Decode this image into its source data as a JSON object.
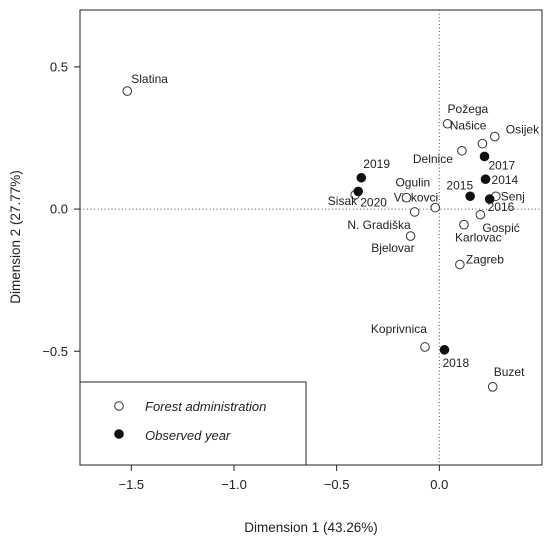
{
  "chart_data": {
    "type": "scatter",
    "xlabel": "Dimension 1 (43.26%)",
    "ylabel": "Dimension 2 (27.77%)",
    "xlim": [
      -1.75,
      0.5
    ],
    "ylim": [
      -0.9,
      0.7
    ],
    "x_ticks": [
      "-1.5",
      "-1.0",
      "-0.5",
      "0.0"
    ],
    "x_tick_values": [
      -1.5,
      -1.0,
      -0.5,
      0.0
    ],
    "y_ticks": [
      "0.5",
      "0.0",
      "-0.5"
    ],
    "y_tick_values": [
      0.5,
      0.0,
      -0.5
    ],
    "reference_lines": {
      "x": 0,
      "y": 0,
      "style": "dotted"
    },
    "legend": {
      "placement": "bottom-left",
      "entries": [
        {
          "label": "Forest administration",
          "marker": "open-circle"
        },
        {
          "label": "Observed year",
          "marker": "filled-circle"
        }
      ]
    },
    "series": [
      {
        "name": "Forest administration",
        "marker": "open-circle",
        "points": [
          {
            "label": "Slatina",
            "x": -1.52,
            "y": 0.415
          },
          {
            "label": "Požega",
            "x": 0.04,
            "y": 0.3
          },
          {
            "label": "Osijek",
            "x": 0.27,
            "y": 0.255
          },
          {
            "label": "Našice",
            "x": 0.21,
            "y": 0.23
          },
          {
            "label": "Delnice",
            "x": 0.11,
            "y": 0.205
          },
          {
            "label": "Senj",
            "x": 0.275,
            "y": 0.045
          },
          {
            "label": "Vinkovci",
            "x": -0.02,
            "y": 0.005
          },
          {
            "label": "Ogulin",
            "x": -0.16,
            "y": 0.04
          },
          {
            "label": "Sisak",
            "x": -0.41,
            "y": 0.05
          },
          {
            "label": "N. Gradiška",
            "x": -0.12,
            "y": -0.01
          },
          {
            "label": "Gospić",
            "x": 0.2,
            "y": -0.02
          },
          {
            "label": "Karlovac",
            "x": 0.12,
            "y": -0.055
          },
          {
            "label": "Bjelovar",
            "x": -0.14,
            "y": -0.095
          },
          {
            "label": "Zagreb",
            "x": 0.1,
            "y": -0.195
          },
          {
            "label": "Koprivnica",
            "x": -0.07,
            "y": -0.485
          },
          {
            "label": "Buzet",
            "x": 0.26,
            "y": -0.625
          }
        ]
      },
      {
        "name": "Observed year",
        "marker": "filled-circle",
        "points": [
          {
            "label": "2019",
            "x": -0.38,
            "y": 0.11
          },
          {
            "label": "2020",
            "x": -0.395,
            "y": 0.062
          },
          {
            "label": "2015",
            "x": 0.15,
            "y": 0.045
          },
          {
            "label": "2017",
            "x": 0.22,
            "y": 0.185
          },
          {
            "label": "2014",
            "x": 0.225,
            "y": 0.105
          },
          {
            "label": "2016",
            "x": 0.245,
            "y": 0.035
          },
          {
            "label": "2018",
            "x": 0.025,
            "y": -0.495
          }
        ]
      }
    ]
  }
}
